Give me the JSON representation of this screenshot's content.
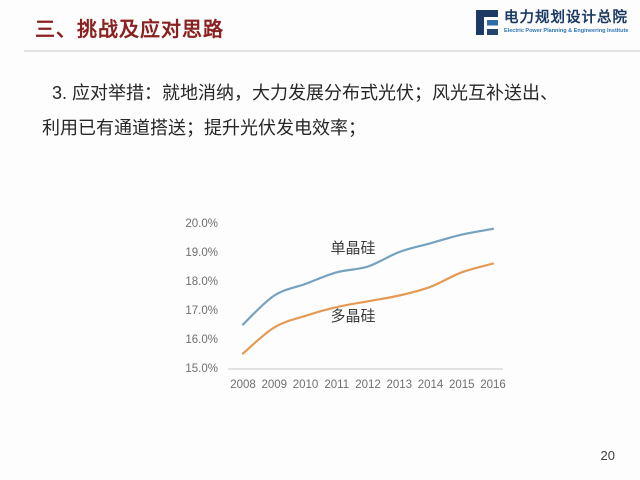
{
  "header": {
    "title": "三、挑战及应对思路",
    "logo": {
      "name_zh": "电力规划设计总院",
      "name_en": "Electric Power Planning & Engineering Institute",
      "icon": "eppei-logo-icon",
      "navy_color": "#1C3A63",
      "mid_blue_color": "#2F6CA8",
      "light_blue_color": "#2E74B5"
    }
  },
  "body": {
    "line1": "3. 应对举措：就地消纳，大力发展分布式光伏；风光互补送出、",
    "line2": "利用已有通道搭送；提升光伏发电效率；"
  },
  "chart_data": {
    "type": "line",
    "title": "",
    "xlabel": "",
    "ylabel": "",
    "categories": [
      "2008",
      "2009",
      "2010",
      "2011",
      "2012",
      "2013",
      "2014",
      "2015",
      "2016"
    ],
    "series": [
      {
        "name": "单晶硅",
        "color": "#74A2BF",
        "values": [
          16.5,
          17.5,
          17.9,
          18.3,
          18.5,
          19.0,
          19.3,
          19.6,
          19.8
        ]
      },
      {
        "name": "多晶硅",
        "color": "#E49A55",
        "values": [
          15.5,
          16.4,
          16.8,
          17.1,
          17.3,
          17.5,
          17.8,
          18.3,
          18.6
        ]
      }
    ],
    "y_ticks": [
      "20.0%",
      "19.0%",
      "18.0%",
      "17.0%",
      "16.0%",
      "15.0%"
    ],
    "y_tick_values": [
      20,
      19,
      18,
      17,
      16,
      15
    ],
    "ylim": [
      15,
      20
    ],
    "grid": false,
    "legend": "inline-labels",
    "axis_text_color": "#6F6F6F",
    "axis_line_color": "#D9D9D9",
    "series_label_color": "#3C3C3C"
  },
  "footer": {
    "page_number": "20"
  }
}
